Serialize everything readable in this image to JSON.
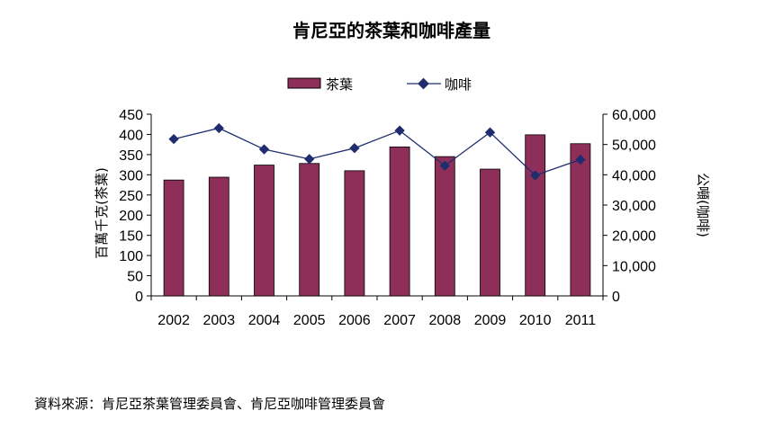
{
  "chart_data": {
    "type": "bar",
    "title": "肯尼亞的茶葉和咖啡產量",
    "categories": [
      "2002",
      "2003",
      "2004",
      "2005",
      "2006",
      "2007",
      "2008",
      "2009",
      "2010",
      "2011"
    ],
    "series": [
      {
        "name": "茶葉",
        "type": "bar",
        "axis": "left",
        "color": "#8e2f5a",
        "values": [
          287,
          294,
          324,
          328,
          310,
          369,
          345,
          314,
          399,
          377
        ]
      },
      {
        "name": "咖啡",
        "type": "line",
        "axis": "right",
        "color": "#1f2d6e",
        "values": [
          51800,
          55400,
          48400,
          45200,
          48800,
          54600,
          43000,
          54000,
          39800,
          45000
        ]
      }
    ],
    "y_left": {
      "label": "百萬千克(茶葉)",
      "min": 0,
      "max": 450,
      "step": 50,
      "ticks": [
        "0",
        "50",
        "100",
        "150",
        "200",
        "250",
        "300",
        "350",
        "400",
        "450"
      ]
    },
    "y_right": {
      "label": "公噸(咖啡)",
      "min": 0,
      "max": 60000,
      "step": 10000,
      "ticks": [
        "0",
        "10,000",
        "20,000",
        "30,000",
        "40,000",
        "50,000",
        "60,000"
      ]
    },
    "legend": {
      "placement": "top"
    },
    "grid": false
  },
  "source_note": "資料來源：肯尼亞茶葉管理委員會、肯尼亞咖啡管理委員會"
}
